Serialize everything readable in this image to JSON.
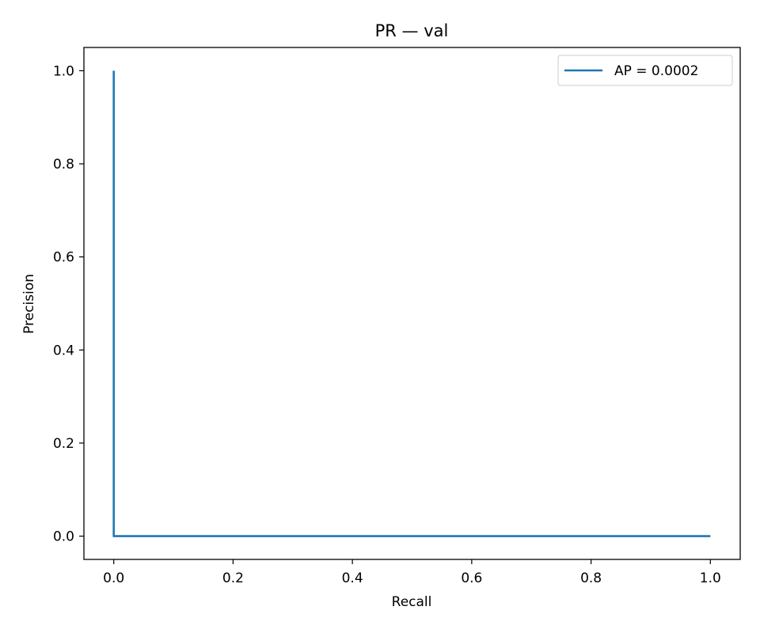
{
  "chart_data": {
    "type": "line",
    "title": "PR — val",
    "xlabel": "Recall",
    "ylabel": "Precision",
    "xlim": [
      -0.05,
      1.05
    ],
    "ylim": [
      -0.05,
      1.05
    ],
    "xticks": [
      0.0,
      0.2,
      0.4,
      0.6,
      0.8,
      1.0
    ],
    "yticks": [
      0.0,
      0.2,
      0.4,
      0.6,
      0.8,
      1.0
    ],
    "xtick_labels": [
      "0.0",
      "0.2",
      "0.4",
      "0.6",
      "0.8",
      "1.0"
    ],
    "ytick_labels": [
      "0.0",
      "0.2",
      "0.4",
      "0.6",
      "0.8",
      "1.0"
    ],
    "grid": false,
    "legend": {
      "position": "top-right"
    },
    "series": [
      {
        "name": "AP = 0.0002",
        "color": "#1f77b4",
        "x": [
          0.0,
          0.0,
          1.0
        ],
        "y": [
          1.0,
          0.0,
          0.0
        ]
      }
    ]
  }
}
